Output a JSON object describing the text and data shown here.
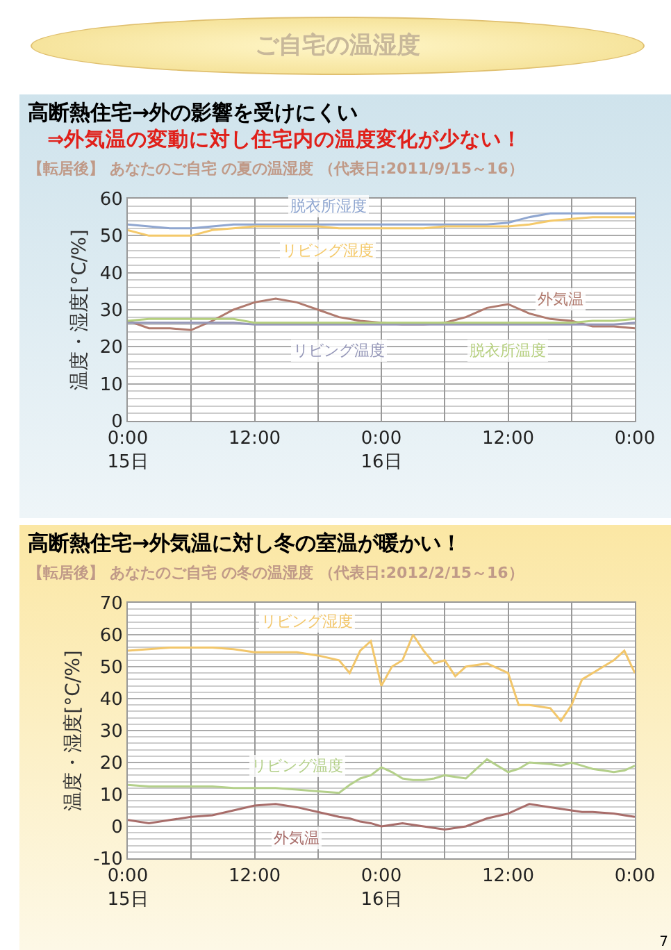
{
  "chart_data": [
    {
      "type": "line",
      "title": "高断熱住宅→外の影響を受けにくい",
      "subtitle": "⇒外気温の変動に対し住宅内の温度変化が少ない！",
      "ylabel": "温度・湿度[°C/%]",
      "annotations": [
        "ご自宅の温湿度",
        "【転居後】 あなたのご自宅 の夏の温湿度 （代表日:2011/9/15～16）"
      ],
      "x": [
        "2011-09-15T00:00",
        "2011-09-15T02:00",
        "2011-09-15T04:00",
        "2011-09-15T06:00",
        "2011-09-15T08:00",
        "2011-09-15T10:00",
        "2011-09-15T12:00",
        "2011-09-15T14:00",
        "2011-09-15T16:00",
        "2011-09-15T18:00",
        "2011-09-15T20:00",
        "2011-09-15T22:00",
        "2011-09-16T00:00",
        "2011-09-16T02:00",
        "2011-09-16T04:00",
        "2011-09-16T06:00",
        "2011-09-16T08:00",
        "2011-09-16T10:00",
        "2011-09-16T12:00",
        "2011-09-16T14:00",
        "2011-09-16T16:00",
        "2011-09-16T18:00",
        "2011-09-16T20:00",
        "2011-09-16T22:00",
        "2011-09-17T00:00"
      ],
      "series": [
        {
          "name": "脱衣所湿度",
          "color": "#8fa6d0",
          "values": [
            53,
            52.5,
            52,
            52,
            52.5,
            53,
            53,
            53,
            53,
            53,
            53,
            53,
            53,
            53,
            53,
            53,
            53,
            53,
            53.5,
            55,
            56,
            56,
            56,
            56,
            56
          ]
        },
        {
          "name": "リビング湿度",
          "color": "#f4c96a",
          "values": [
            51.5,
            50,
            50,
            50,
            51.5,
            52,
            52.5,
            52.5,
            52.5,
            52.5,
            52,
            52,
            52,
            52,
            52,
            52.5,
            52.5,
            52.5,
            52.5,
            53,
            54,
            54.5,
            55,
            55,
            55
          ]
        },
        {
          "name": "外気温",
          "color": "#b07a6e",
          "values": [
            27,
            25,
            25,
            24.5,
            27,
            30,
            32,
            33,
            32,
            30,
            28,
            27,
            26.5,
            26,
            26,
            26.5,
            28,
            30.5,
            31.5,
            29,
            27.5,
            27,
            25.5,
            25.5,
            25
          ]
        },
        {
          "name": "リビング温度",
          "color": "#9597b8",
          "values": [
            26.5,
            26.5,
            26.5,
            26.5,
            26.5,
            26.5,
            26,
            26,
            26,
            26,
            26,
            26,
            26,
            26,
            26,
            26,
            26,
            26,
            26,
            26,
            26,
            26,
            26,
            26,
            26.5
          ]
        },
        {
          "name": "脱衣所温度",
          "color": "#b5cf7e",
          "values": [
            27,
            27.5,
            27.5,
            27.5,
            27.5,
            27.5,
            26.5,
            26.5,
            26.5,
            26.5,
            26.5,
            26.5,
            26.5,
            26.5,
            26.5,
            26.5,
            26.5,
            26.5,
            26.5,
            26.5,
            26.5,
            26.5,
            27,
            27,
            27.5
          ]
        }
      ],
      "xlim": [
        "2011-09-15T00:00",
        "2011-09-17T00:00"
      ],
      "xticks": [
        {
          "value": "2011-09-15T00:00",
          "label": "0:00\n15日"
        },
        {
          "value": "2011-09-15T06:00",
          "label": null
        },
        {
          "value": "2011-09-15T12:00",
          "label": "12:00"
        },
        {
          "value": "2011-09-15T18:00",
          "label": null
        },
        {
          "value": "2011-09-16T00:00",
          "label": "0:00\n16日"
        },
        {
          "value": "2011-09-16T06:00",
          "label": null
        },
        {
          "value": "2011-09-16T12:00",
          "label": "12:00"
        },
        {
          "value": "2011-09-16T18:00",
          "label": null
        },
        {
          "value": "2011-09-17T00:00",
          "label": "0:00"
        }
      ],
      "ylim": [
        0,
        60
      ],
      "yticks": [
        0,
        10,
        20,
        30,
        40,
        50,
        60
      ],
      "grid": true,
      "legend": false,
      "marker": "none",
      "line_style": "solid"
    },
    {
      "type": "line",
      "title": "高断熱住宅→外気温に対し冬の室温が暖かい！",
      "ylabel": "温度・湿度[°C/%]",
      "annotations": [
        "【転居後】 あなたのご自宅 の冬の温湿度 （代表日:2012/2/15～16）",
        "7"
      ],
      "x": [
        "2012-02-15T00:00",
        "2012-02-15T02:00",
        "2012-02-15T04:00",
        "2012-02-15T06:00",
        "2012-02-15T08:00",
        "2012-02-15T10:00",
        "2012-02-15T12:00",
        "2012-02-15T14:00",
        "2012-02-15T16:00",
        "2012-02-15T18:00",
        "2012-02-15T20:00",
        "2012-02-15T21:00",
        "2012-02-15T22:00",
        "2012-02-15T23:00",
        "2012-02-16T00:00",
        "2012-02-16T01:00",
        "2012-02-16T02:00",
        "2012-02-16T03:00",
        "2012-02-16T04:00",
        "2012-02-16T05:00",
        "2012-02-16T06:00",
        "2012-02-16T07:00",
        "2012-02-16T08:00",
        "2012-02-16T10:00",
        "2012-02-16T12:00",
        "2012-02-16T13:00",
        "2012-02-16T14:00",
        "2012-02-16T16:00",
        "2012-02-16T17:00",
        "2012-02-16T18:00",
        "2012-02-16T19:00",
        "2012-02-16T20:00",
        "2012-02-16T22:00",
        "2012-02-16T23:00",
        "2012-02-17T00:00"
      ],
      "series": [
        {
          "name": "リビング湿度",
          "color": "#f2c66a",
          "values": [
            55,
            55.5,
            56,
            56,
            56,
            55.5,
            54.5,
            54.5,
            54.5,
            53.5,
            52,
            48,
            55,
            58,
            44,
            50,
            52,
            60,
            55,
            51,
            52,
            47,
            50,
            51,
            48,
            38,
            38,
            37,
            33,
            38,
            46,
            48,
            52,
            55,
            48
          ]
        },
        {
          "name": "リビング温度",
          "color": "#b4d08a",
          "values": [
            13,
            12.5,
            12.5,
            12.5,
            12.5,
            12,
            12,
            12,
            11.5,
            11,
            10.5,
            13,
            15,
            16,
            18.5,
            17,
            15,
            14.5,
            14.5,
            15,
            16,
            15.5,
            15,
            21,
            17,
            18,
            20,
            19.5,
            19,
            20,
            19,
            18,
            17,
            17.5,
            19
          ]
        },
        {
          "name": "外気温",
          "color": "#a86d6a",
          "values": [
            2,
            1,
            2,
            3,
            3.5,
            5,
            6.5,
            7,
            6,
            4.5,
            3,
            2.5,
            1.5,
            1,
            0,
            0.5,
            1,
            0.5,
            0,
            -0.5,
            -1,
            -0.5,
            0,
            2.5,
            4,
            5.5,
            7,
            6,
            5.5,
            5,
            4.5,
            4.5,
            4,
            3.5,
            3
          ]
        }
      ],
      "xlim": [
        "2012-02-15T00:00",
        "2012-02-17T00:00"
      ],
      "xticks": [
        {
          "value": "2012-02-15T00:00",
          "label": "0:00\n15日"
        },
        {
          "value": "2012-02-15T06:00",
          "label": null
        },
        {
          "value": "2012-02-15T12:00",
          "label": "12:00"
        },
        {
          "value": "2012-02-15T18:00",
          "label": null
        },
        {
          "value": "2012-02-16T00:00",
          "label": "0:00\n16日"
        },
        {
          "value": "2012-02-16T06:00",
          "label": null
        },
        {
          "value": "2012-02-16T12:00",
          "label": "12:00"
        },
        {
          "value": "2012-02-16T18:00",
          "label": null
        },
        {
          "value": "2012-02-17T00:00",
          "label": "0:00"
        }
      ],
      "ylim": [
        -10,
        70
      ],
      "yticks": [
        -10,
        0,
        10,
        20,
        30,
        40,
        50,
        60,
        70
      ],
      "grid": true,
      "legend": false,
      "marker": "none",
      "line_style": "solid"
    }
  ]
}
